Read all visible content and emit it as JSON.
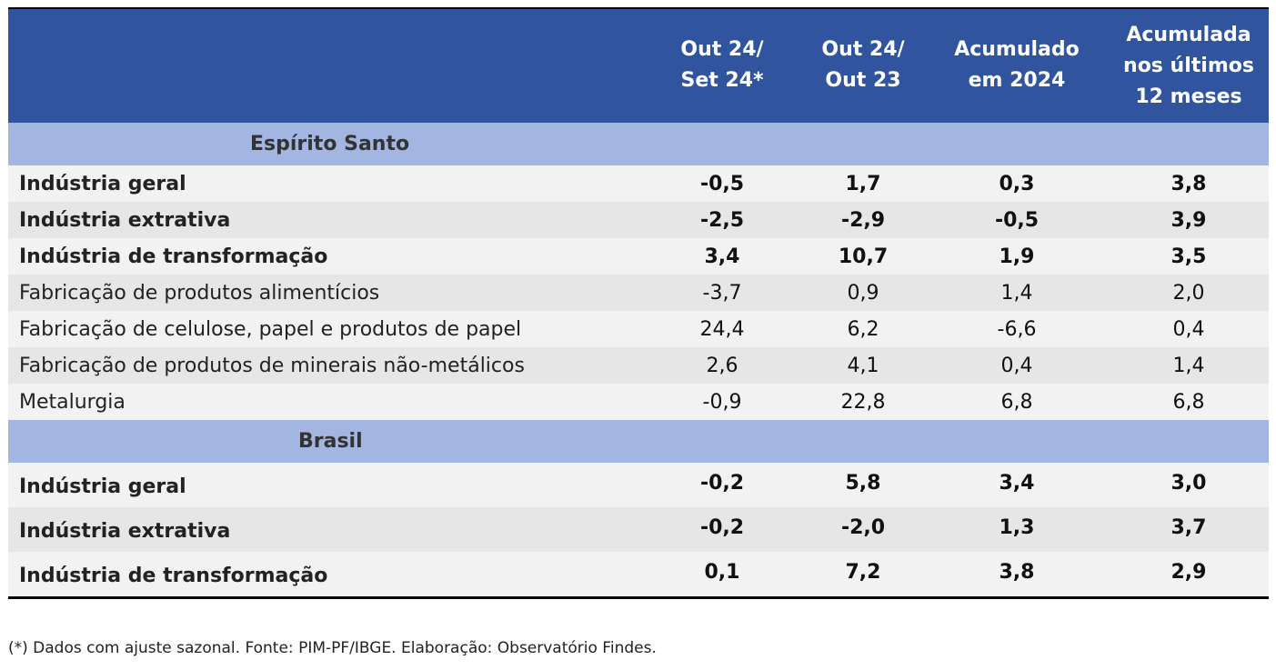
{
  "columns": [
    "Out 24/\nSet 24*",
    "Out 24/\nOut 23",
    "Acumulado\nem 2024",
    "Acumulada\nnos últimos\n12 meses"
  ],
  "sections": [
    {
      "title": "Espírito Santo",
      "rows": [
        {
          "label": "Indústria geral",
          "bold": true,
          "values": [
            "-0,5",
            "1,7",
            "0,3",
            "3,8"
          ]
        },
        {
          "label": "Indústria extrativa",
          "bold": true,
          "values": [
            "-2,5",
            "-2,9",
            "-0,5",
            "3,9"
          ]
        },
        {
          "label": "Indústria de transformação",
          "bold": true,
          "values": [
            "3,4",
            "10,7",
            "1,9",
            "3,5"
          ]
        },
        {
          "label": "Fabricação de produtos alimentícios",
          "bold": false,
          "values": [
            "-3,7",
            "0,9",
            "1,4",
            "2,0"
          ]
        },
        {
          "label": "Fabricação de celulose, papel e produtos de papel",
          "bold": false,
          "values": [
            "24,4",
            "6,2",
            "-6,6",
            "0,4"
          ]
        },
        {
          "label": "Fabricação de produtos de minerais não-metálicos",
          "bold": false,
          "values": [
            "2,6",
            "4,1",
            "0,4",
            "1,4"
          ]
        },
        {
          "label": "Metalurgia",
          "bold": false,
          "values": [
            "-0,9",
            "22,8",
            "6,8",
            "6,8"
          ]
        }
      ]
    },
    {
      "title": "Brasil",
      "rows": [
        {
          "label": "Indústria geral",
          "bold": true,
          "values": [
            "-0,2",
            "5,8",
            "3,4",
            "3,0"
          ]
        },
        {
          "label": "Indústria extrativa",
          "bold": true,
          "values": [
            "-0,2",
            "-2,0",
            "1,3",
            "3,7"
          ]
        },
        {
          "label": "Indústria de transformação",
          "bold": true,
          "values": [
            "0,1",
            "7,2",
            "3,8",
            "2,9"
          ]
        }
      ]
    }
  ],
  "footnote": "(*) Dados com ajuste sazonal. Fonte: PIM-PF/IBGE. Elaboração: Observatório Findes.",
  "colors": {
    "header": "#30549e",
    "section": "#a3b6e2",
    "row_light": "#f2f2f2",
    "row_dark": "#e6e6e6"
  }
}
